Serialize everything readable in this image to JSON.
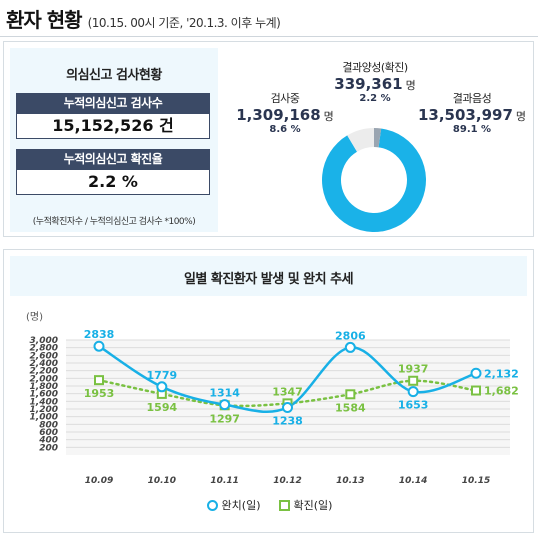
{
  "header": {
    "title": "환자 현황",
    "subtitle": "(10.15. 00시 기준, '20.1.3. 이후 누계)"
  },
  "test_summary": {
    "title": "의심신고 검사현황",
    "cumulative_tests_label": "누적의심신고 검사수",
    "cumulative_tests_value": "15,152,526 건",
    "positive_rate_label": "누적의심신고 확진율",
    "positive_rate_value": "2.2 %",
    "note": "(누적확진자수 / 누적의심신고 검사수 *100%)"
  },
  "test_results": {
    "positive": {
      "label": "결과양성(확진)",
      "value": "339,361",
      "unit": "명",
      "percent": "2.2 %"
    },
    "testing": {
      "label": "검사중",
      "value": "1,309,168",
      "unit": "명",
      "percent": "8.6 %"
    },
    "negative": {
      "label": "결과음성",
      "value": "13,503,997",
      "unit": "명",
      "percent": "89.1 %"
    },
    "colors": {
      "negative": "#1ab2e8",
      "testing": "#ececec",
      "positive": "#9aa5b1"
    }
  },
  "chart": {
    "title": "일별 확진환자 발생 및 완치 추세",
    "unit": "(명)",
    "legend": {
      "recovered": "완치(일)",
      "confirmed": "확진(일)"
    }
  },
  "chart_data": {
    "type": "line",
    "title": "일별 확진환자 발생 및 완치 추세",
    "ylabel": "(명)",
    "categories": [
      "10.09",
      "10.10",
      "10.11",
      "10.12",
      "10.13",
      "10.14",
      "10.15"
    ],
    "yticks": [
      "200",
      "400",
      "600",
      "800",
      "1,000",
      "1,200",
      "1,400",
      "1,600",
      "1,800",
      "2,000",
      "2,200",
      "2,400",
      "2,600",
      "2,800",
      "3,000"
    ],
    "ylim": [
      0,
      3000
    ],
    "series": [
      {
        "name": "완치(일)",
        "key": "recovered",
        "color": "#18b0e6",
        "values": [
          2838,
          1779,
          1314,
          1238,
          2806,
          1653,
          2132
        ],
        "labels": [
          "2838",
          "1779",
          "1314",
          "1238",
          "2806",
          "1653",
          "2,132"
        ]
      },
      {
        "name": "확진(일)",
        "key": "confirmed",
        "color": "#7ac142",
        "values": [
          1953,
          1594,
          1297,
          1347,
          1584,
          1937,
          1682
        ],
        "labels": [
          "1953",
          "1594",
          "1297",
          "1347",
          "1584",
          "1937",
          "1,682"
        ]
      }
    ]
  }
}
